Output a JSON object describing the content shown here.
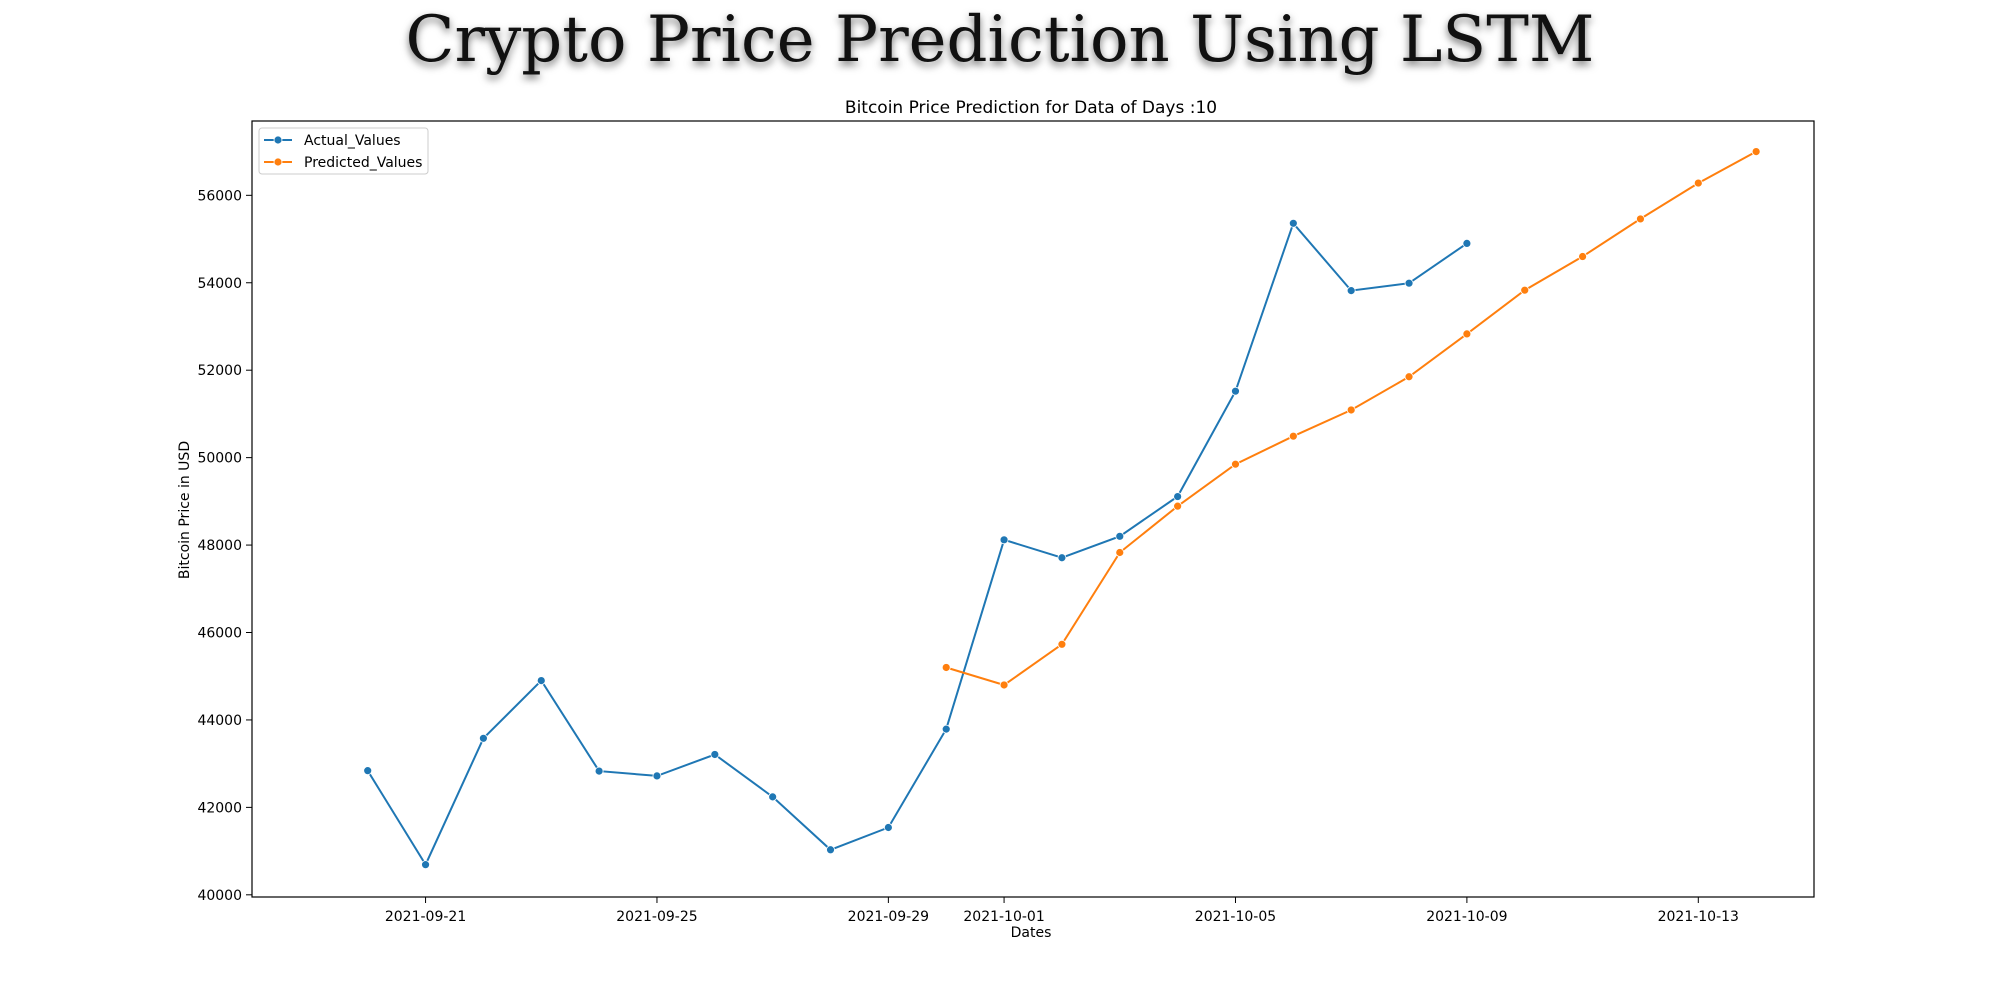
{
  "page_title": "Crypto Price Prediction Using LSTM",
  "chart_data": {
    "type": "line",
    "title": "Bitcoin Price Prediction for Data of Days :10",
    "xlabel": "Dates",
    "ylabel": "Bitcoin Price in USD",
    "xlim": [
      "2021-09-18",
      "2021-10-15"
    ],
    "ylim": [
      39950,
      57700
    ],
    "xticks": [
      "2021-09-21",
      "2021-09-25",
      "2021-09-29",
      "2021-10-01",
      "2021-10-05",
      "2021-10-09",
      "2021-10-13"
    ],
    "yticks": [
      40000,
      42000,
      44000,
      46000,
      48000,
      50000,
      52000,
      54000,
      56000
    ],
    "grid": false,
    "legend_position": "top-left",
    "series": [
      {
        "name": "Actual_Values",
        "color": "#1f77b4",
        "x": [
          "2021-09-20",
          "2021-09-21",
          "2021-09-22",
          "2021-09-23",
          "2021-09-24",
          "2021-09-25",
          "2021-09-26",
          "2021-09-27",
          "2021-09-28",
          "2021-09-29",
          "2021-09-30",
          "2021-10-01",
          "2021-10-02",
          "2021-10-03",
          "2021-10-04",
          "2021-10-05",
          "2021-10-06",
          "2021-10-07",
          "2021-10-08",
          "2021-10-09"
        ],
        "values": [
          42840,
          40690,
          43580,
          44900,
          42830,
          42720,
          43210,
          42240,
          41030,
          41540,
          43790,
          48120,
          47710,
          48200,
          49110,
          51520,
          55360,
          53820,
          53990,
          54900
        ]
      },
      {
        "name": "Predicted_Values",
        "color": "#ff7f0e",
        "x": [
          "2021-09-30",
          "2021-10-01",
          "2021-10-02",
          "2021-10-03",
          "2021-10-04",
          "2021-10-05",
          "2021-10-06",
          "2021-10-07",
          "2021-10-08",
          "2021-10-09",
          "2021-10-10",
          "2021-10-11",
          "2021-10-12",
          "2021-10-13",
          "2021-10-14"
        ],
        "values": [
          45200,
          44800,
          45730,
          47830,
          48890,
          49850,
          50490,
          51090,
          51850,
          52830,
          53830,
          54600,
          55460,
          56280,
          57000
        ]
      }
    ]
  }
}
